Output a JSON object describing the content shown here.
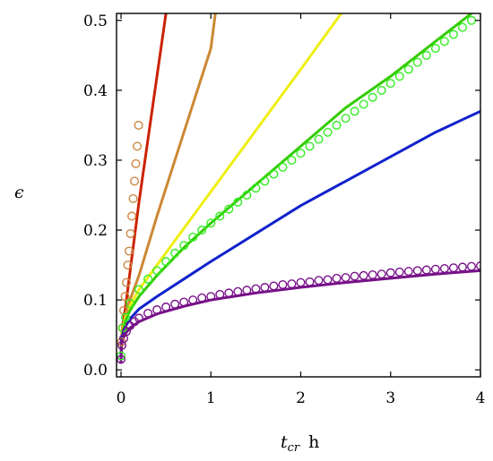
{
  "chart_data": {
    "type": "line",
    "title": "",
    "xlabel": "t",
    "xlabel_sub": "cr",
    "xlabel_unit": "h",
    "ylabel": "ϵ",
    "xlim": [
      -0.05,
      4.0
    ],
    "ylim": [
      -0.01,
      0.51
    ],
    "x_ticks": [
      0,
      1,
      2,
      3,
      4
    ],
    "y_ticks": [
      0.0,
      0.1,
      0.2,
      0.3,
      0.4,
      0.5
    ],
    "x_tick_labels": [
      "0",
      "1",
      "2",
      "3",
      "4"
    ],
    "y_tick_labels": [
      "0.0",
      "0.1",
      "0.2",
      "0.3",
      "0.4",
      "0.5"
    ],
    "grid": false,
    "legend": "none",
    "series": [
      {
        "kind": "line",
        "color": "#cc2200",
        "x": [
          0,
          0.001,
          0.005,
          0.01,
          0.02,
          0.05,
          0.1,
          0.15,
          0.2,
          0.3,
          0.4,
          0.5
        ],
        "y": [
          0.012,
          0.025,
          0.04,
          0.05,
          0.065,
          0.09,
          0.14,
          0.19,
          0.24,
          0.33,
          0.42,
          0.51
        ]
      },
      {
        "kind": "line",
        "color": "#cc8833",
        "x": [
          0,
          0.001,
          0.005,
          0.01,
          0.02,
          0.05,
          0.1,
          0.2,
          0.4,
          0.6,
          0.8,
          1.0,
          1.05
        ],
        "y": [
          0.012,
          0.025,
          0.04,
          0.048,
          0.06,
          0.08,
          0.1,
          0.135,
          0.22,
          0.3,
          0.38,
          0.46,
          0.51
        ]
      },
      {
        "kind": "line",
        "color": "#eeee11",
        "x": [
          0,
          0.001,
          0.005,
          0.01,
          0.02,
          0.05,
          0.1,
          0.2,
          0.4,
          0.8,
          1.2,
          1.6,
          2.0,
          2.45
        ],
        "y": [
          0.012,
          0.025,
          0.04,
          0.048,
          0.058,
          0.075,
          0.092,
          0.115,
          0.15,
          0.22,
          0.29,
          0.36,
          0.43,
          0.51
        ]
      },
      {
        "kind": "line",
        "color": "#33cc00",
        "x": [
          0,
          0.001,
          0.005,
          0.01,
          0.02,
          0.05,
          0.1,
          0.2,
          0.4,
          0.7,
          1.0,
          1.5,
          2.0,
          2.5,
          3.0,
          3.5,
          3.9
        ],
        "y": [
          0.012,
          0.024,
          0.038,
          0.046,
          0.055,
          0.07,
          0.085,
          0.105,
          0.135,
          0.175,
          0.21,
          0.265,
          0.32,
          0.375,
          0.42,
          0.47,
          0.51
        ]
      },
      {
        "kind": "line",
        "color": "#1122cc",
        "x": [
          0,
          0.001,
          0.005,
          0.01,
          0.02,
          0.05,
          0.1,
          0.2,
          0.4,
          0.7,
          1.0,
          1.5,
          2.0,
          2.5,
          3.0,
          3.5,
          4.0
        ],
        "y": [
          0.012,
          0.024,
          0.036,
          0.043,
          0.051,
          0.062,
          0.073,
          0.087,
          0.105,
          0.13,
          0.155,
          0.195,
          0.235,
          0.27,
          0.305,
          0.34,
          0.37
        ]
      },
      {
        "kind": "line",
        "color": "#771188",
        "x": [
          0,
          0.001,
          0.005,
          0.01,
          0.02,
          0.05,
          0.1,
          0.2,
          0.4,
          0.7,
          1.0,
          1.5,
          2.0,
          2.5,
          3.0,
          3.5,
          4.0
        ],
        "y": [
          0.012,
          0.022,
          0.032,
          0.038,
          0.044,
          0.052,
          0.06,
          0.069,
          0.08,
          0.091,
          0.1,
          0.11,
          0.118,
          0.125,
          0.131,
          0.137,
          0.142
        ]
      },
      {
        "kind": "markers",
        "color": "#cc8844",
        "x": [
          0.005,
          0.015,
          0.03,
          0.045,
          0.06,
          0.075,
          0.09,
          0.105,
          0.12,
          0.135,
          0.15,
          0.165,
          0.18,
          0.195
        ],
        "y": [
          0.04,
          0.06,
          0.085,
          0.105,
          0.125,
          0.15,
          0.17,
          0.195,
          0.22,
          0.245,
          0.27,
          0.295,
          0.32,
          0.35
        ]
      },
      {
        "kind": "markers",
        "color": "#33ee22",
        "x": [
          0.0,
          0.02,
          0.05,
          0.1,
          0.2,
          0.3,
          0.4,
          0.5,
          0.6,
          0.7,
          0.8,
          0.9,
          1.0,
          1.1,
          1.2,
          1.3,
          1.4,
          1.5,
          1.6,
          1.7,
          1.8,
          1.9,
          2.0,
          2.1,
          2.2,
          2.3,
          2.4,
          2.5,
          2.6,
          2.7,
          2.8,
          2.9,
          3.0,
          3.1,
          3.2,
          3.3,
          3.4,
          3.5,
          3.6,
          3.7,
          3.8,
          3.9
        ],
        "y": [
          0.02,
          0.06,
          0.075,
          0.095,
          0.115,
          0.13,
          0.142,
          0.155,
          0.167,
          0.178,
          0.19,
          0.2,
          0.21,
          0.22,
          0.23,
          0.24,
          0.25,
          0.26,
          0.27,
          0.28,
          0.29,
          0.3,
          0.31,
          0.32,
          0.33,
          0.34,
          0.35,
          0.36,
          0.37,
          0.38,
          0.39,
          0.4,
          0.41,
          0.42,
          0.43,
          0.44,
          0.45,
          0.46,
          0.47,
          0.48,
          0.49,
          0.5
        ]
      },
      {
        "kind": "markers",
        "color": "#771188",
        "x": [
          0.0,
          0.01,
          0.03,
          0.06,
          0.1,
          0.15,
          0.2,
          0.3,
          0.4,
          0.5,
          0.6,
          0.7,
          0.8,
          0.9,
          1.0,
          1.1,
          1.2,
          1.3,
          1.4,
          1.5,
          1.6,
          1.7,
          1.8,
          1.9,
          2.0,
          2.1,
          2.2,
          2.3,
          2.4,
          2.5,
          2.6,
          2.7,
          2.8,
          2.9,
          3.0,
          3.1,
          3.2,
          3.3,
          3.4,
          3.5,
          3.6,
          3.7,
          3.8,
          3.9,
          4.0
        ],
        "y": [
          0.015,
          0.035,
          0.045,
          0.055,
          0.063,
          0.069,
          0.074,
          0.081,
          0.086,
          0.09,
          0.094,
          0.097,
          0.1,
          0.103,
          0.105,
          0.108,
          0.11,
          0.112,
          0.114,
          0.116,
          0.118,
          0.12,
          0.122,
          0.123,
          0.125,
          0.126,
          0.128,
          0.129,
          0.131,
          0.132,
          0.134,
          0.135,
          0.136,
          0.137,
          0.139,
          0.14,
          0.141,
          0.142,
          0.143,
          0.144,
          0.145,
          0.146,
          0.147,
          0.148,
          0.149
        ]
      }
    ]
  }
}
